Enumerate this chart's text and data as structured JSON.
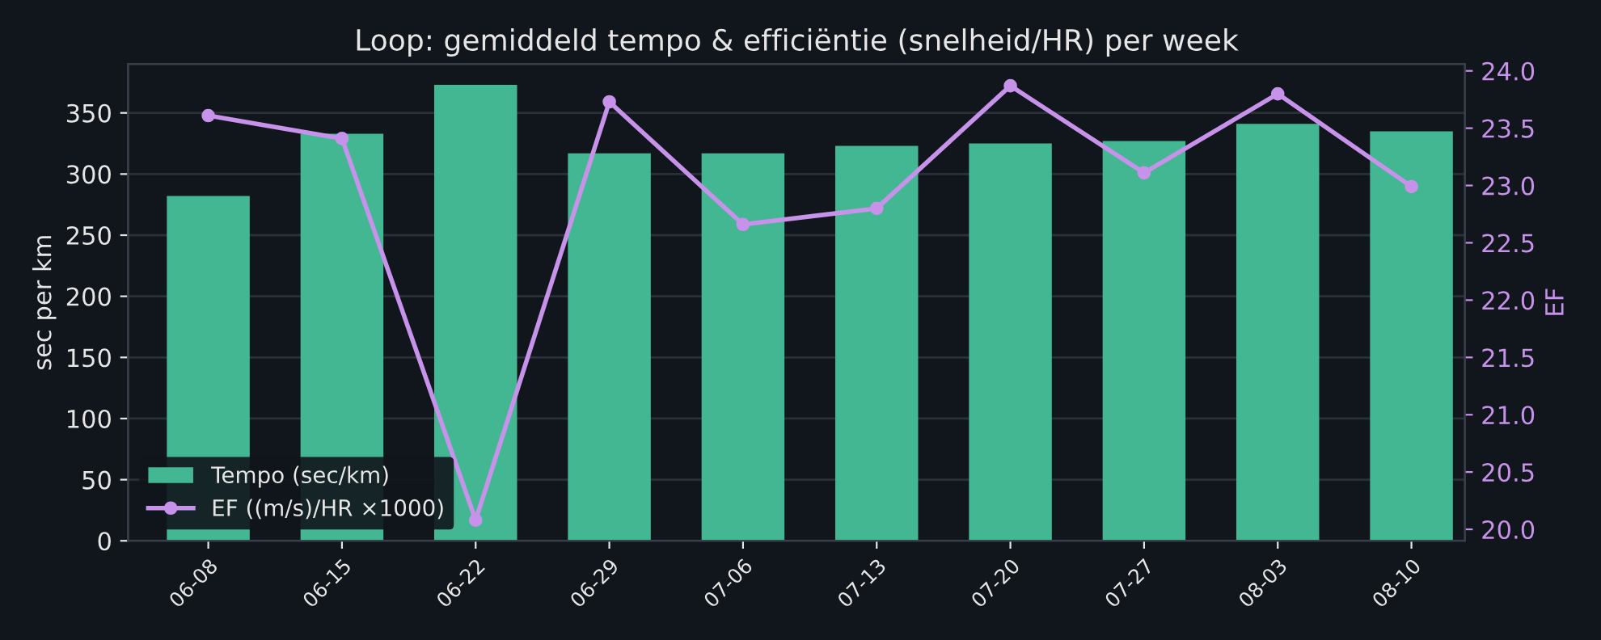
{
  "chart_data": {
    "type": "bar",
    "title": "Loop: gemiddeld tempo & efficiëntie (snelheid/HR) per week",
    "ylabel": "sec per km",
    "y2label": "EF",
    "categories": [
      "06-08",
      "06-15",
      "06-22",
      "06-29",
      "07-06",
      "07-13",
      "07-20",
      "07-27",
      "08-03",
      "08-10"
    ],
    "series": [
      {
        "name": "Tempo (sec/km)",
        "color": "#43b692",
        "values": [
          282,
          333,
          373,
          317,
          317,
          323,
          325,
          327,
          341,
          335
        ]
      },
      {
        "name": "EF ((m/s)/HR ×1000)",
        "type": "line",
        "axis": "y2",
        "color": "#c792ea",
        "marker": "circle",
        "values": [
          23.61,
          23.41,
          20.08,
          23.73,
          22.66,
          22.8,
          23.87,
          23.11,
          23.8,
          22.99
        ]
      }
    ],
    "ylim": [
      0,
      390
    ],
    "yticks": [
      0,
      50,
      100,
      150,
      200,
      250,
      300,
      350
    ],
    "y2lim": [
      19.9,
      24.06
    ],
    "y2ticks": [
      {
        "value": 20,
        "label": "20.0"
      },
      {
        "value": 20.5,
        "label": "20.5"
      },
      {
        "value": 21,
        "label": "21.0"
      },
      {
        "value": 21.5,
        "label": "21.5"
      },
      {
        "value": 22,
        "label": "22.0"
      },
      {
        "value": 22.5,
        "label": "22.5"
      },
      {
        "value": 23,
        "label": "23.0"
      },
      {
        "value": 23.5,
        "label": "23.5"
      },
      {
        "value": 24,
        "label": "24.0"
      }
    ],
    "grid": "y",
    "legend": "bottom left"
  }
}
